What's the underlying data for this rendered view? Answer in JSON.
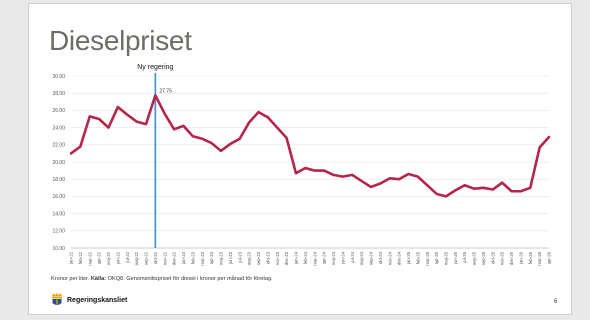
{
  "slide": {
    "title": "Dieselpriset",
    "footnote_prefix": "Kronor per liter.",
    "footnote_source_label": "Källa:",
    "footnote_source": "OKQ8. Genomsnittspriset för diesel i kronor per månad för företag.",
    "brand": "Regeringskansliet",
    "page_number": "6"
  },
  "colors": {
    "series": "#b5264a",
    "marker_line": "#3a8fd6",
    "grid": "#e3e3e3",
    "text": "#555555"
  },
  "chart_data": {
    "type": "line",
    "ylim": [
      10,
      30
    ],
    "yticks": [
      "10.00",
      "12.00",
      "14.00",
      "16.00",
      "18.00",
      "20.00",
      "22.00",
      "24.00",
      "26.00",
      "28.00",
      "30.00"
    ],
    "categories": [
      "jan-22",
      "feb-22",
      "mar-22",
      "apr-22",
      "maj-22",
      "jun-22",
      "jul-22",
      "aug-22",
      "sep-22",
      "okt-22",
      "nov-22",
      "dec-22",
      "jan-23",
      "feb-23",
      "mar-23",
      "apr-23",
      "maj-23",
      "jun-23",
      "jul-23",
      "aug-23",
      "sep-23",
      "okt-23",
      "nov-23",
      "dec-23",
      "jan-24",
      "feb-24",
      "mar-24",
      "apr-24",
      "maj-24",
      "jun-24",
      "jul-24",
      "aug-24",
      "sep-24",
      "okt-24",
      "nov-24",
      "dec-24",
      "jan-25",
      "feb-25",
      "mar-25",
      "apr-25",
      "maj-25",
      "jun-25",
      "jul-25",
      "aug-25",
      "sep-25",
      "okt-25",
      "nov-25",
      "dec-25",
      "jan-26",
      "feb-26",
      "mar-26",
      "apr-26"
    ],
    "series": [
      {
        "values": [
          21.0,
          21.8,
          25.3,
          25.0,
          24.0,
          26.4,
          25.5,
          24.7,
          24.4,
          27.75,
          25.6,
          23.8,
          24.2,
          23.0,
          22.7,
          22.2,
          21.3,
          22.1,
          22.7,
          24.6,
          25.8,
          25.2,
          24.0,
          22.8,
          18.7,
          19.3,
          19.0,
          19.0,
          18.5,
          18.3,
          18.5,
          17.8,
          17.1,
          17.5,
          18.1,
          18.0,
          18.6,
          18.3,
          17.3,
          16.3,
          16.0,
          16.7,
          17.3,
          16.9,
          17.0,
          16.8,
          17.6,
          16.6,
          16.6,
          17.0,
          21.7,
          22.9
        ]
      }
    ],
    "event_marker": {
      "category": "okt-22",
      "label": "Ny regering",
      "value_label": "27.75"
    },
    "grid": true,
    "legend": "none"
  }
}
